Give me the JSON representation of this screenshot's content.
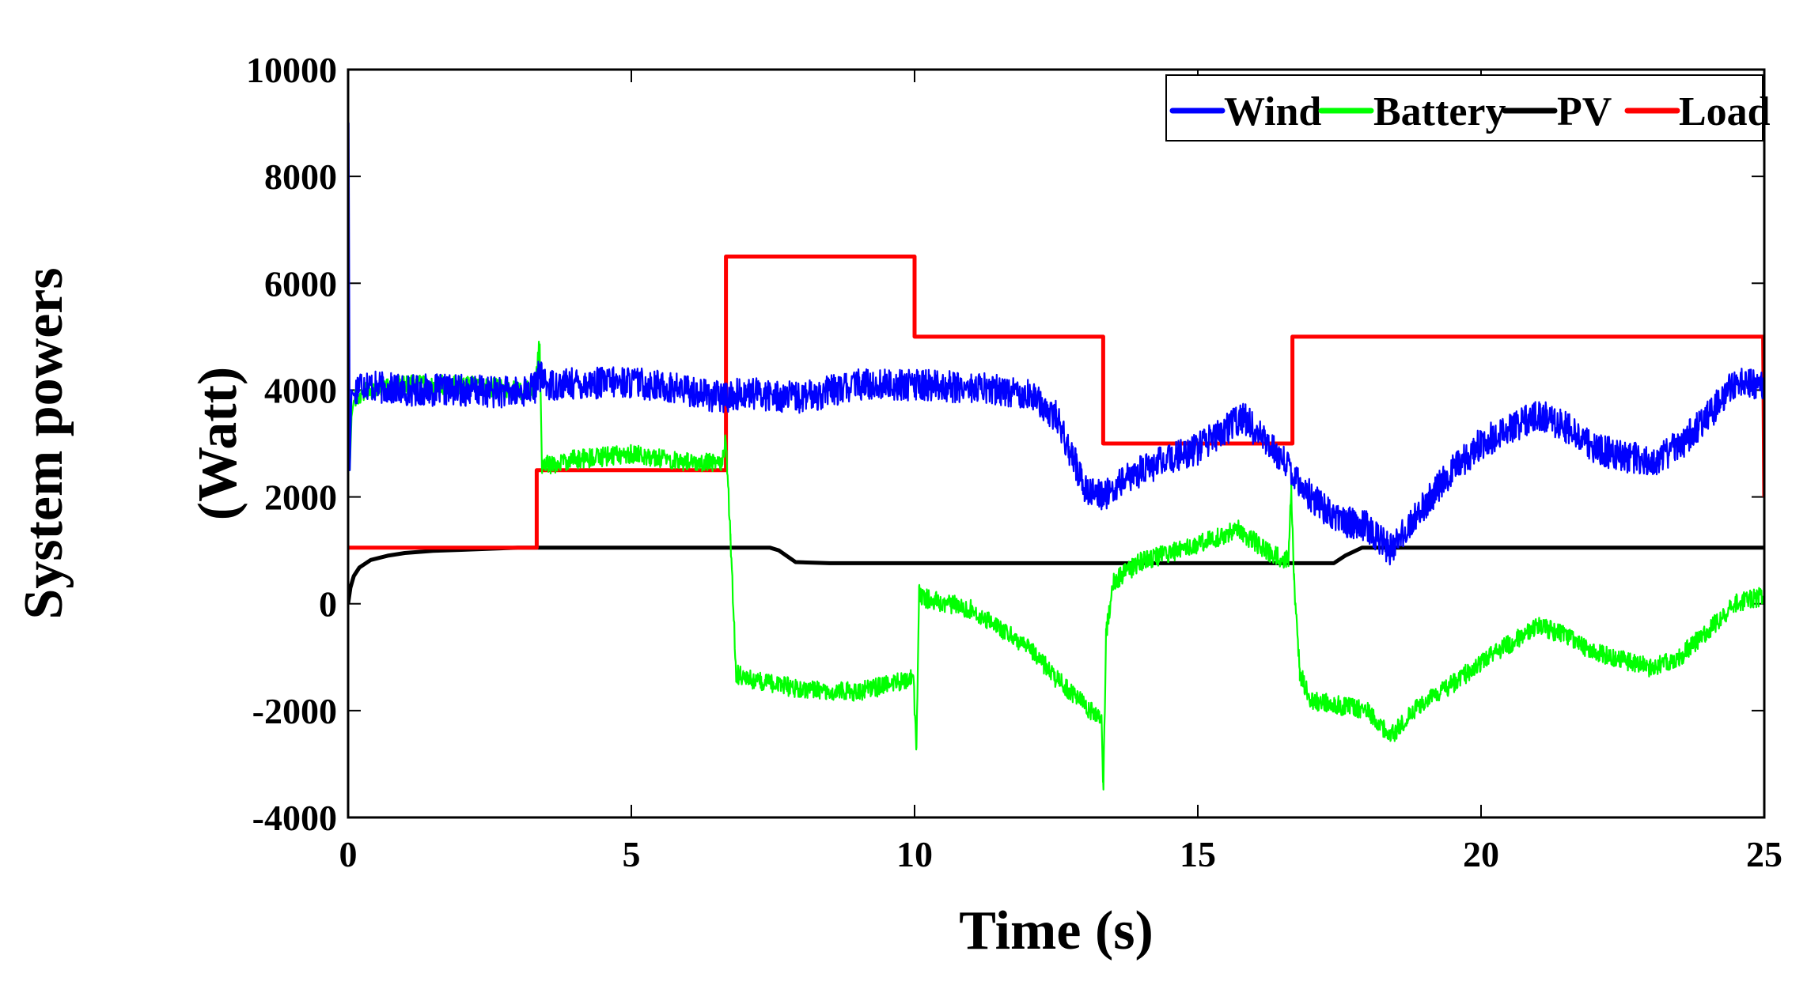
{
  "chart_data": {
    "type": "line",
    "title": "",
    "xlabel": "Time (s)",
    "ylabel_line1": "System powers",
    "ylabel_line2": "(Watt)",
    "xlim": [
      0,
      25
    ],
    "ylim": [
      -4000,
      10000
    ],
    "xticks": [
      0,
      5,
      10,
      15,
      20,
      25
    ],
    "xtick_labels": [
      "0",
      "5",
      "10",
      "15",
      "20",
      "25"
    ],
    "yticks": [
      -4000,
      -2000,
      0,
      2000,
      4000,
      6000,
      8000,
      10000
    ],
    "ytick_labels": [
      "-4000",
      "-2000",
      "0",
      "2000",
      "4000",
      "6000",
      "8000",
      "10000"
    ],
    "grid": false,
    "legend_position": "top-right",
    "legend_orientation": "horizontal",
    "series": [
      {
        "name": "Wind",
        "color": "#0000ff",
        "noise": 300,
        "x": [
          0,
          0.01,
          0.03,
          0.06,
          0.1,
          0.2,
          0.5,
          1,
          2,
          3,
          3.3,
          3.35,
          3.5,
          5,
          6,
          6.6,
          7,
          8,
          9,
          10,
          11,
          12,
          12.5,
          13,
          13.3,
          14,
          15,
          15.8,
          16.2,
          16.6,
          17,
          17.5,
          18,
          18.4,
          18.8,
          19.5,
          20,
          21,
          21.5,
          22,
          23,
          23.5,
          24,
          24.5,
          25
        ],
        "y": [
          0,
          9000,
          2500,
          4000,
          3900,
          4150,
          4050,
          4000,
          4000,
          3950,
          4050,
          4300,
          4100,
          4150,
          4000,
          3850,
          3950,
          3850,
          4100,
          4100,
          4050,
          3950,
          3500,
          2200,
          2000,
          2500,
          2900,
          3500,
          3000,
          2600,
          2000,
          1550,
          1450,
          1000,
          1600,
          2500,
          3000,
          3550,
          3300,
          2900,
          2650,
          2950,
          3500,
          4150,
          4100
        ]
      },
      {
        "name": "Battery",
        "color": "#00ff00",
        "noise": 180,
        "x": [
          0,
          0.01,
          0.03,
          0.06,
          0.1,
          0.3,
          1,
          2,
          3,
          3.3,
          3.38,
          3.42,
          3.5,
          4,
          5,
          6,
          6.6,
          6.67,
          6.75,
          6.85,
          7,
          8,
          9,
          9.98,
          10.03,
          10.08,
          10.2,
          11,
          12,
          12.5,
          13,
          13.3,
          13.33,
          13.38,
          13.5,
          14,
          15,
          15.7,
          16.2,
          16.6,
          16.65,
          16.7,
          16.8,
          17,
          18,
          18.4,
          18.8,
          19.5,
          20,
          21,
          21.5,
          22,
          23,
          23.5,
          24,
          24.5,
          25
        ],
        "y": [
          500,
          4800,
          2500,
          3500,
          3800,
          4000,
          4100,
          4100,
          4000,
          4000,
          4900,
          2600,
          2600,
          2700,
          2800,
          2650,
          2650,
          3100,
          1200,
          -1300,
          -1400,
          -1600,
          -1650,
          -1400,
          -2800,
          200,
          100,
          -100,
          -800,
          -1400,
          -1900,
          -2200,
          -3500,
          -600,
          400,
          800,
          1100,
          1400,
          1000,
          800,
          2200,
          400,
          -1300,
          -1800,
          -2000,
          -2500,
          -2000,
          -1500,
          -1100,
          -400,
          -600,
          -900,
          -1200,
          -1000,
          -500,
          0,
          150
        ]
      },
      {
        "name": "PV",
        "color": "#000000",
        "noise": 0,
        "x": [
          0,
          0.04,
          0.1,
          0.2,
          0.4,
          0.7,
          1,
          1.5,
          2,
          2.5,
          3,
          7.45,
          7.6,
          7.9,
          8.5,
          17.4,
          17.6,
          17.9,
          25
        ],
        "y": [
          0,
          300,
          520,
          680,
          820,
          900,
          950,
          990,
          1010,
          1030,
          1050,
          1050,
          1000,
          780,
          760,
          760,
          900,
          1050,
          1050
        ]
      },
      {
        "name": "Load",
        "color": "#ff0000",
        "noise": 0,
        "x": [
          0,
          3.33,
          3.33,
          6.67,
          6.67,
          10,
          10,
          13.33,
          13.33,
          16.67,
          16.67,
          24.98,
          25
        ],
        "y": [
          1050,
          1050,
          2500,
          2500,
          6500,
          6500,
          5000,
          5000,
          3000,
          3000,
          5000,
          5000,
          2000
        ]
      }
    ]
  }
}
